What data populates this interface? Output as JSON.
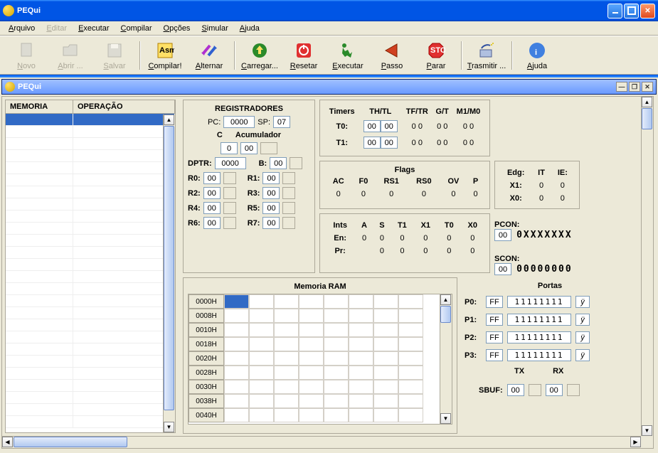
{
  "window": {
    "title": "PEQui"
  },
  "menu": [
    "Arquivo",
    "Editar",
    "Executar",
    "Compilar",
    "Opções",
    "Simular",
    "Ajuda"
  ],
  "menu_disabled": [
    false,
    true,
    false,
    false,
    false,
    false,
    false
  ],
  "toolbar": [
    {
      "label": "Novo",
      "disabled": true,
      "icon": "file-icon"
    },
    {
      "label": "Abrir ...",
      "disabled": true,
      "icon": "folder-icon"
    },
    {
      "label": "Salvar",
      "disabled": true,
      "icon": "save-icon"
    },
    {
      "sep": true
    },
    {
      "label": "Compilar!",
      "disabled": false,
      "icon": "asm-icon"
    },
    {
      "label": "Alternar",
      "disabled": false,
      "icon": "swap-icon"
    },
    {
      "sep": true
    },
    {
      "label": "Carregar...",
      "disabled": false,
      "icon": "upload-icon"
    },
    {
      "label": "Resetar",
      "disabled": false,
      "icon": "reset-icon"
    },
    {
      "label": "Executar",
      "disabled": false,
      "icon": "run-icon"
    },
    {
      "label": "Passo",
      "disabled": false,
      "icon": "step-icon"
    },
    {
      "label": "Parar",
      "disabled": false,
      "icon": "stop-icon"
    },
    {
      "sep": true
    },
    {
      "label": "Trasmitir ...",
      "disabled": false,
      "icon": "transmit-icon"
    },
    {
      "sep": true
    },
    {
      "label": "Ajuda",
      "disabled": false,
      "icon": "info-icon"
    }
  ],
  "child": {
    "title": "PEQui"
  },
  "memtable": {
    "col1": "MEMORIA",
    "col2": "OPERAÇÃO",
    "rows": 26
  },
  "regs": {
    "title": "REGISTRADORES",
    "pc_lbl": "PC:",
    "pc": "0000",
    "sp_lbl": "SP:",
    "sp": "07",
    "c_lbl": "C",
    "acc_lbl": "Acumulador",
    "c": "0",
    "acc": "00",
    "acc_ext": "",
    "dptr_lbl": "DPTR:",
    "dptr": "0000",
    "b_lbl": "B:",
    "b": "00",
    "b_ext": "",
    "r": [
      {
        "l": "R0:",
        "v": "00"
      },
      {
        "l": "R1:",
        "v": "00"
      },
      {
        "l": "R2:",
        "v": "00"
      },
      {
        "l": "R3:",
        "v": "00"
      },
      {
        "l": "R4:",
        "v": "00"
      },
      {
        "l": "R5:",
        "v": "00"
      },
      {
        "l": "R6:",
        "v": "00"
      },
      {
        "l": "R7:",
        "v": "00"
      }
    ]
  },
  "timers": {
    "headers": [
      "Timers",
      "TH/TL",
      "TF/TR",
      "G/T",
      "M1/M0"
    ],
    "rows": [
      {
        "name": "T0:",
        "thtl_a": "00",
        "thtl_b": "00",
        "tf": "0",
        "tr": "0",
        "g": "0",
        "t": "0",
        "m1": "0",
        "m0": "0"
      },
      {
        "name": "T1:",
        "thtl_a": "00",
        "thtl_b": "00",
        "tf": "0",
        "tr": "0",
        "g": "0",
        "t": "0",
        "m1": "0",
        "m0": "0"
      }
    ]
  },
  "flags": {
    "title": "Flags",
    "headers": [
      "AC",
      "F0",
      "RS1",
      "RS0",
      "OV",
      "P"
    ],
    "values": [
      "0",
      "0",
      "0",
      "0",
      "0",
      "0"
    ]
  },
  "edg": {
    "headers": [
      "Edg:",
      "IT",
      "IE:"
    ],
    "rows": [
      {
        "name": "X1:",
        "it": "0",
        "ie": "0"
      },
      {
        "name": "X0:",
        "it": "0",
        "ie": "0"
      }
    ]
  },
  "ints": {
    "headers": [
      "Ints",
      "A",
      "S",
      "T1",
      "X1",
      "T0",
      "X0"
    ],
    "en_lbl": "En:",
    "en": [
      "0",
      "0",
      "0",
      "0",
      "0",
      "0"
    ],
    "pr_lbl": "Pr:",
    "pr": [
      "",
      "0",
      "0",
      "0",
      "0",
      "0"
    ]
  },
  "pcon": {
    "label": "PCON:",
    "val": "00",
    "bits": "0XXXXXXX"
  },
  "scon": {
    "label": "SCON:",
    "val": "00",
    "bits": "00000000"
  },
  "ram": {
    "title": "Memoria RAM",
    "addrs": [
      "0000H",
      "0008H",
      "0010H",
      "0018H",
      "0020H",
      "0028H",
      "0030H",
      "0038H",
      "0040H"
    ],
    "cols": 8
  },
  "portas": {
    "title": "Portas",
    "ports": [
      {
        "name": "P0:",
        "hex": "FF",
        "bits": "11111111",
        "ch": "ÿ"
      },
      {
        "name": "P1:",
        "hex": "FF",
        "bits": "11111111",
        "ch": "ÿ"
      },
      {
        "name": "P2:",
        "hex": "FF",
        "bits": "11111111",
        "ch": "ÿ"
      },
      {
        "name": "P3:",
        "hex": "FF",
        "bits": "11111111",
        "ch": "ÿ"
      }
    ],
    "tx": "TX",
    "rx": "RX",
    "sbuf_lbl": "SBUF:",
    "sbuf_tx": "00",
    "sbuf_rx": "00"
  }
}
